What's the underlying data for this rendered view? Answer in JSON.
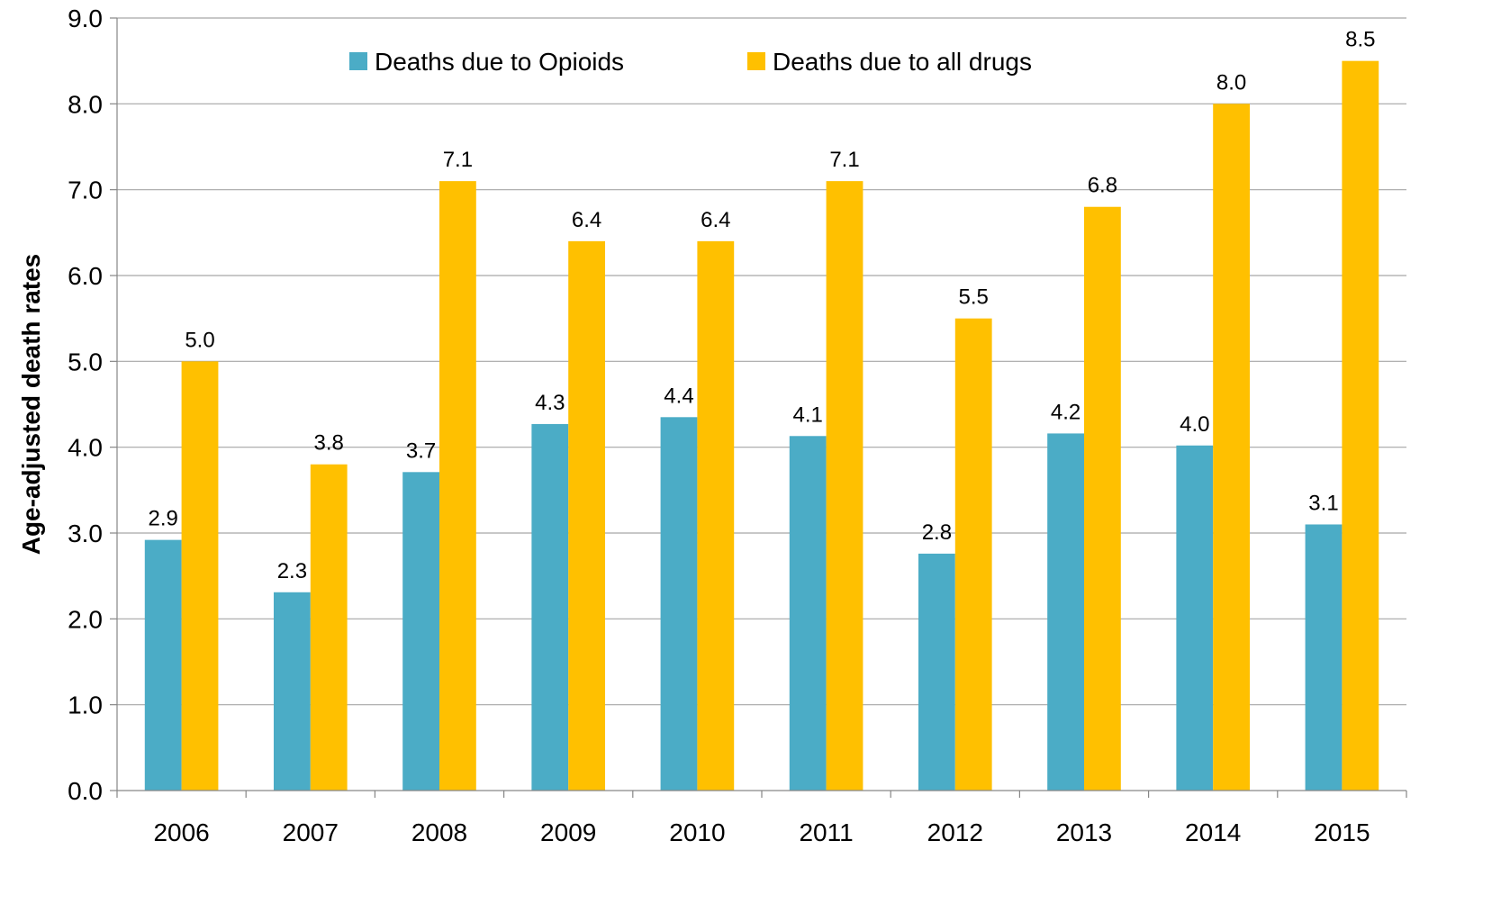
{
  "chart_data": {
    "type": "bar",
    "title": "",
    "xlabel": "",
    "ylabel": "Age-adjusted death rates",
    "ylim": [
      0,
      9
    ],
    "ytick_step": 1,
    "ytick_labels": [
      "0.0",
      "1.0",
      "2.0",
      "3.0",
      "4.0",
      "5.0",
      "6.0",
      "7.0",
      "8.0",
      "9.0"
    ],
    "categories": [
      "2006",
      "2007",
      "2008",
      "2009",
      "2010",
      "2011",
      "2012",
      "2013",
      "2014",
      "2015"
    ],
    "series": [
      {
        "name": "Deaths due to Opioids",
        "color": "#4bacc6",
        "values": [
          2.92,
          2.31,
          3.71,
          4.27,
          4.35,
          4.13,
          2.76,
          4.16,
          4.02,
          3.1
        ],
        "labels": [
          "2.9",
          "2.3",
          "3.7",
          "4.3",
          "4.4",
          "4.1",
          "2.8",
          "4.2",
          "4.0",
          "3.1"
        ]
      },
      {
        "name": "Deaths due to all drugs",
        "color": "#ffc000",
        "values": [
          5.0,
          3.8,
          7.1,
          6.4,
          6.4,
          7.1,
          5.5,
          6.8,
          8.0,
          8.5
        ],
        "labels": [
          "5.0",
          "3.8",
          "7.1",
          "6.4",
          "6.4",
          "7.1",
          "5.5",
          "6.8",
          "8.0",
          "8.5"
        ]
      }
    ],
    "grid": true,
    "legend": "top-center"
  }
}
